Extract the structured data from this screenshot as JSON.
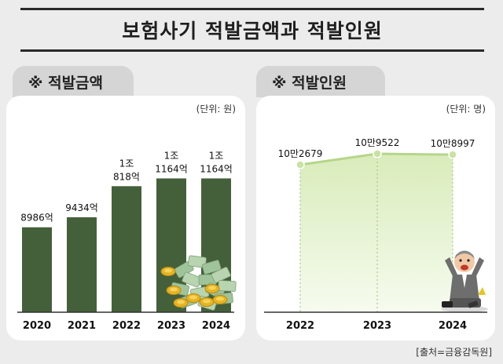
{
  "header": {
    "title": "보험사기 적발금액과 적발인원"
  },
  "tabs": {
    "left": "※ 적발금액",
    "right": "※ 적발인원"
  },
  "source": "[출처=금융감독원]",
  "colors": {
    "bar": "#44603a",
    "line": "#b6d58b",
    "fill": "#e3f1cc",
    "point": "#c9e3a2"
  },
  "chart_data": [
    {
      "type": "bar",
      "unit_label": "(단위: 원)",
      "categories": [
        "2020",
        "2021",
        "2022",
        "2023",
        "2024"
      ],
      "values": [
        8986,
        9434,
        10818,
        11164,
        11164
      ],
      "value_labels": [
        [
          "8986억"
        ],
        [
          "9434억"
        ],
        [
          "1조",
          "818억"
        ],
        [
          "1조",
          "1164억"
        ],
        [
          "1조",
          "1164억"
        ]
      ],
      "decoration": "money-pile-icon"
    },
    {
      "type": "area",
      "unit_label": "(단위: 명)",
      "categories": [
        "2022",
        "2023",
        "2024"
      ],
      "values": [
        102679,
        109522,
        108997
      ],
      "value_labels": [
        "10만2679",
        "10만9522",
        "10만8997"
      ],
      "decoration": "distressed-man-icon"
    }
  ]
}
